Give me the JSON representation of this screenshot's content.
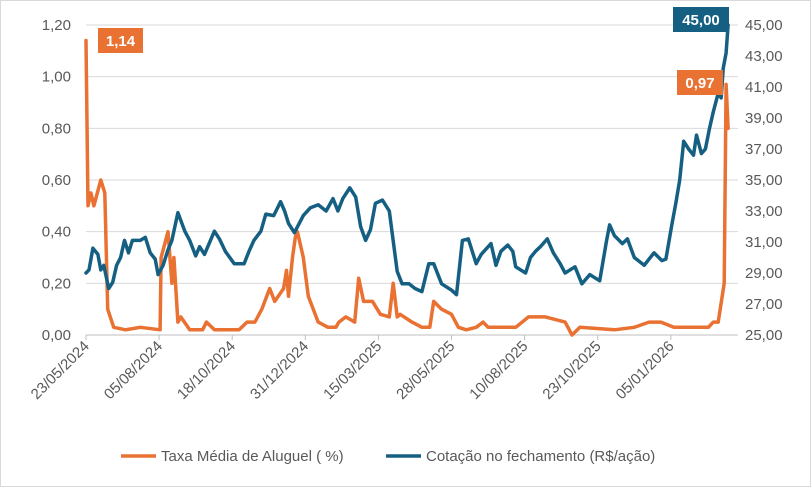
{
  "chart_data": {
    "type": "line",
    "title": "",
    "x_ticks": [
      "23/05/2024",
      "05/08/2024",
      "18/10/2024",
      "31/12/2024",
      "15/03/2025",
      "28/05/2025",
      "10/08/2025",
      "23/10/2025",
      "05/01/2026"
    ],
    "x_tick_days": [
      0,
      74,
      148,
      222,
      296,
      370,
      444,
      518,
      592
    ],
    "xlim_days": [
      0,
      660
    ],
    "y_left": {
      "min": 0,
      "max": 1.2,
      "step": 0.2,
      "ticks": [
        "0,00",
        "0,20",
        "0,40",
        "0,60",
        "0,80",
        "1,00",
        "1,20"
      ]
    },
    "y_right": {
      "min": 25,
      "max": 45,
      "step": 2,
      "ticks": [
        "25,00",
        "27,00",
        "29,00",
        "31,00",
        "33,00",
        "35,00",
        "37,00",
        "39,00",
        "41,00",
        "43,00",
        "45,00"
      ]
    },
    "grid": true,
    "legend_position": "bottom",
    "series": [
      {
        "name": "Taxa Média de Aluguel ( %)",
        "axis": "left",
        "color": "#E97132",
        "points": [
          [
            0,
            1.14
          ],
          [
            2,
            0.5
          ],
          [
            5,
            0.55
          ],
          [
            8,
            0.5
          ],
          [
            15,
            0.6
          ],
          [
            19,
            0.55
          ],
          [
            22,
            0.1
          ],
          [
            28,
            0.03
          ],
          [
            40,
            0.02
          ],
          [
            55,
            0.03
          ],
          [
            75,
            0.02
          ],
          [
            76,
            0.3
          ],
          [
            83,
            0.4
          ],
          [
            87,
            0.2
          ],
          [
            89,
            0.3
          ],
          [
            93,
            0.05
          ],
          [
            96,
            0.07
          ],
          [
            105,
            0.02
          ],
          [
            118,
            0.02
          ],
          [
            122,
            0.05
          ],
          [
            130,
            0.02
          ],
          [
            155,
            0.02
          ],
          [
            163,
            0.05
          ],
          [
            171,
            0.05
          ],
          [
            178,
            0.1
          ],
          [
            186,
            0.18
          ],
          [
            191,
            0.13
          ],
          [
            200,
            0.18
          ],
          [
            203,
            0.25
          ],
          [
            205,
            0.15
          ],
          [
            209,
            0.3
          ],
          [
            212,
            0.38
          ],
          [
            214,
            0.4
          ],
          [
            220,
            0.3
          ],
          [
            225,
            0.15
          ],
          [
            235,
            0.05
          ],
          [
            245,
            0.03
          ],
          [
            253,
            0.03
          ],
          [
            256,
            0.05
          ],
          [
            263,
            0.07
          ],
          [
            272,
            0.05
          ],
          [
            276,
            0.22
          ],
          [
            281,
            0.13
          ],
          [
            290,
            0.13
          ],
          [
            298,
            0.08
          ],
          [
            307,
            0.07
          ],
          [
            311,
            0.2
          ],
          [
            315,
            0.07
          ],
          [
            318,
            0.08
          ],
          [
            330,
            0.05
          ],
          [
            340,
            0.03
          ],
          [
            348,
            0.03
          ],
          [
            352,
            0.13
          ],
          [
            360,
            0.1
          ],
          [
            370,
            0.08
          ],
          [
            377,
            0.03
          ],
          [
            385,
            0.02
          ],
          [
            395,
            0.03
          ],
          [
            402,
            0.05
          ],
          [
            407,
            0.03
          ],
          [
            420,
            0.03
          ],
          [
            435,
            0.03
          ],
          [
            448,
            0.07
          ],
          [
            465,
            0.07
          ],
          [
            485,
            0.05
          ],
          [
            492,
            0.0
          ],
          [
            500,
            0.03
          ],
          [
            535,
            0.02
          ],
          [
            555,
            0.03
          ],
          [
            570,
            0.05
          ],
          [
            582,
            0.05
          ],
          [
            595,
            0.03
          ],
          [
            630,
            0.03
          ],
          [
            635,
            0.05
          ],
          [
            640,
            0.05
          ],
          [
            646,
            0.2
          ],
          [
            648,
            0.97
          ],
          [
            650,
            0.8
          ]
        ]
      },
      {
        "name": "Cotação no fechamento (R$/ação)",
        "axis": "right",
        "color": "#156082",
        "points": [
          [
            0,
            29.0
          ],
          [
            3,
            29.2
          ],
          [
            7,
            30.6
          ],
          [
            12,
            30.2
          ],
          [
            15,
            29.2
          ],
          [
            18,
            29.5
          ],
          [
            23,
            28.0
          ],
          [
            27,
            28.4
          ],
          [
            31,
            29.5
          ],
          [
            35,
            30.0
          ],
          [
            39,
            31.1
          ],
          [
            43,
            30.3
          ],
          [
            47,
            31.1
          ],
          [
            55,
            31.1
          ],
          [
            60,
            31.3
          ],
          [
            65,
            30.3
          ],
          [
            70,
            29.9
          ],
          [
            73,
            28.9
          ],
          [
            78,
            29.5
          ],
          [
            83,
            30.5
          ],
          [
            87,
            31.1
          ],
          [
            93,
            32.9
          ],
          [
            100,
            31.7
          ],
          [
            105,
            31.1
          ],
          [
            111,
            30.1
          ],
          [
            115,
            30.7
          ],
          [
            120,
            30.2
          ],
          [
            130,
            31.7
          ],
          [
            135,
            31.2
          ],
          [
            141,
            30.4
          ],
          [
            150,
            29.6
          ],
          [
            160,
            29.6
          ],
          [
            165,
            30.4
          ],
          [
            170,
            31.1
          ],
          [
            177,
            31.7
          ],
          [
            182,
            32.8
          ],
          [
            190,
            32.7
          ],
          [
            197,
            33.6
          ],
          [
            201,
            33.0
          ],
          [
            205,
            32.2
          ],
          [
            211,
            31.6
          ],
          [
            220,
            32.7
          ],
          [
            227,
            33.2
          ],
          [
            235,
            33.4
          ],
          [
            243,
            33.0
          ],
          [
            250,
            33.8
          ],
          [
            255,
            33.0
          ],
          [
            260,
            33.8
          ],
          [
            267,
            34.5
          ],
          [
            273,
            33.9
          ],
          [
            278,
            32.0
          ],
          [
            283,
            31.1
          ],
          [
            288,
            31.8
          ],
          [
            293,
            33.5
          ],
          [
            300,
            33.7
          ],
          [
            307,
            33.0
          ],
          [
            315,
            29.1
          ],
          [
            320,
            28.3
          ],
          [
            327,
            28.3
          ],
          [
            333,
            28.0
          ],
          [
            340,
            27.8
          ],
          [
            347,
            29.6
          ],
          [
            352,
            29.6
          ],
          [
            360,
            28.3
          ],
          [
            370,
            27.9
          ],
          [
            375,
            27.6
          ],
          [
            381,
            31.1
          ],
          [
            387,
            31.2
          ],
          [
            395,
            29.6
          ],
          [
            400,
            30.2
          ],
          [
            410,
            30.9
          ],
          [
            415,
            29.5
          ],
          [
            420,
            30.4
          ],
          [
            427,
            30.8
          ],
          [
            432,
            30.4
          ],
          [
            435,
            29.4
          ],
          [
            445,
            29.0
          ],
          [
            450,
            30.0
          ],
          [
            455,
            30.4
          ],
          [
            460,
            30.7
          ],
          [
            467,
            31.2
          ],
          [
            473,
            30.3
          ],
          [
            480,
            29.6
          ],
          [
            485,
            29.0
          ],
          [
            495,
            29.4
          ],
          [
            502,
            28.3
          ],
          [
            510,
            28.9
          ],
          [
            520,
            28.5
          ],
          [
            527,
            31.1
          ],
          [
            530,
            32.1
          ],
          [
            535,
            31.4
          ],
          [
            543,
            30.9
          ],
          [
            548,
            31.2
          ],
          [
            555,
            30.0
          ],
          [
            565,
            29.5
          ],
          [
            575,
            30.3
          ],
          [
            583,
            29.8
          ],
          [
            587,
            29.9
          ],
          [
            593,
            32.1
          ],
          [
            597,
            33.5
          ],
          [
            601,
            35.0
          ],
          [
            605,
            37.5
          ],
          [
            610,
            37.0
          ],
          [
            615,
            36.6
          ],
          [
            618,
            37.9
          ],
          [
            623,
            36.7
          ],
          [
            627,
            37.0
          ],
          [
            631,
            38.3
          ],
          [
            635,
            39.4
          ],
          [
            640,
            40.6
          ],
          [
            643,
            40.3
          ],
          [
            645,
            42.2
          ],
          [
            648,
            43.2
          ],
          [
            650,
            45.0
          ]
        ]
      }
    ],
    "data_labels": [
      {
        "series": 0,
        "text": "1,14"
      },
      {
        "series": 1,
        "text": "45,00"
      },
      {
        "series": 0,
        "text": "0,97"
      }
    ]
  }
}
